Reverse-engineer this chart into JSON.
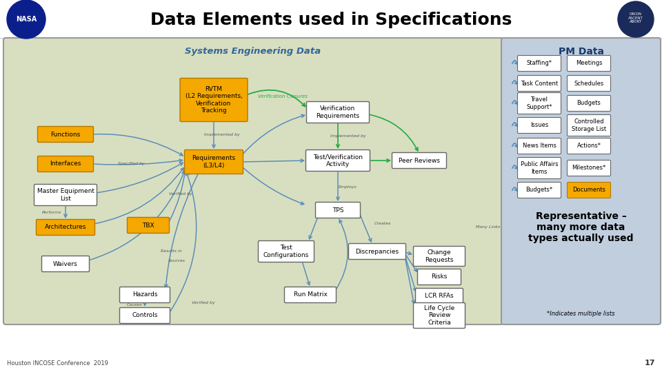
{
  "title": "Data Elements used in Specifications",
  "title_fontsize": 18,
  "title_color": "#000000",
  "bg_color": "#ffffff",
  "se_panel_color": "#d8dfc0",
  "se_panel_border": "#999999",
  "se_title": "Systems Engineering Data",
  "se_title_color": "#336699",
  "pm_panel_color": "#c0cede",
  "pm_panel_border": "#999999",
  "pm_title": "PM Data",
  "pm_title_color": "#1a3a6a",
  "orange_box_color": "#f5a800",
  "orange_box_border": "#b07800",
  "white_box_color": "#ffffff",
  "white_box_border": "#666666",
  "arrow_blue": "#5b8db8",
  "arrow_green": "#22aa44",
  "footer_text": "Houston INCOSE Conference  2019",
  "page_num": "17",
  "note_text": "*Indicates multiple lists",
  "rep_text": "Representative –\nmany more data\ntypes actually used"
}
